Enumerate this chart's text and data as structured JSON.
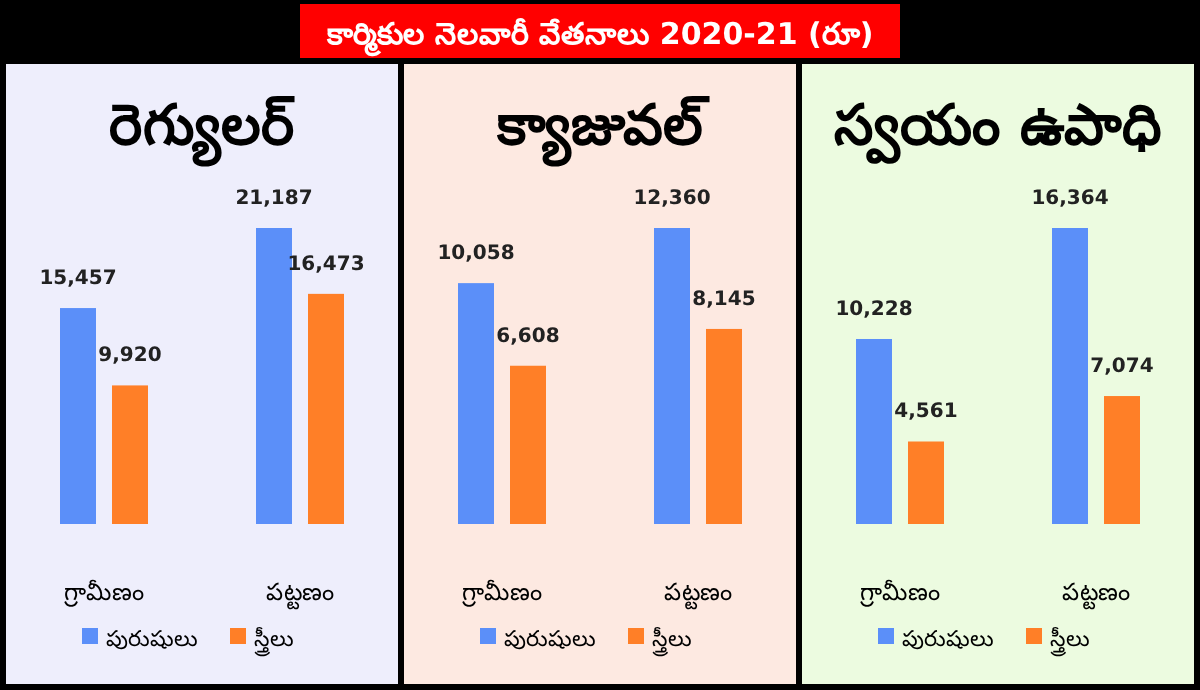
{
  "chart_data": [
    {
      "type": "bar",
      "title": "రెగ్యులర్",
      "annotations": [
        "కార్మికుల నెలవారీ వేతనాలు 2020-21 (రూ)"
      ],
      "categories": [
        "గ్రామీణం",
        "పట్టణం"
      ],
      "series": [
        {
          "name": "పురుషులు",
          "color": "#5b8ff9",
          "values": [
            15457,
            21187
          ],
          "value_labels": [
            "15,457",
            "21,187"
          ]
        },
        {
          "name": "స్త్రీలు",
          "color": "#ff7f27",
          "values": [
            9920,
            16473
          ],
          "value_labels": [
            "9,920",
            "16,473"
          ]
        }
      ],
      "legend": "bottom"
    },
    {
      "type": "bar",
      "title": "క్యాజువల్",
      "categories": [
        "గ్రామీణం",
        "పట్టణం"
      ],
      "series": [
        {
          "name": "పురుషులు",
          "color": "#5b8ff9",
          "values": [
            10058,
            12360
          ],
          "value_labels": [
            "10,058",
            "12,360"
          ]
        },
        {
          "name": "స్త్రీలు",
          "color": "#ff7f27",
          "values": [
            6608,
            8145
          ],
          "value_labels": [
            "6,608",
            "8,145"
          ]
        }
      ],
      "legend": "bottom"
    },
    {
      "type": "bar",
      "title": "స్వయం ఉపాధి",
      "categories": [
        "గ్రామీణం",
        "పట్టణం"
      ],
      "series": [
        {
          "name": "పురుషులు",
          "color": "#5b8ff9",
          "values": [
            10228,
            16364
          ],
          "value_labels": [
            "10,228",
            "16,364"
          ]
        },
        {
          "name": "స్త్రీలు",
          "color": "#ff7f27",
          "values": [
            4561,
            7074
          ],
          "value_labels": [
            "4,561",
            "7,074"
          ]
        }
      ],
      "legend": "bottom"
    }
  ]
}
